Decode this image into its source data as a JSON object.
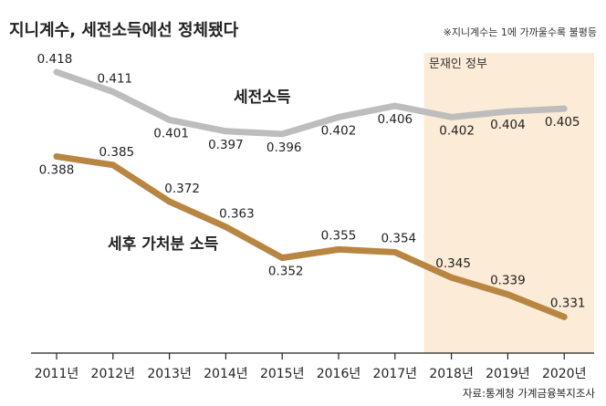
{
  "chart_data": {
    "type": "line",
    "title": "지니계수, 세전소득에선 정체됐다",
    "note": "※지니계수는 1에 가까울수록 불평등",
    "source": "자료:통계청 가계금융복지조사",
    "categories": [
      "2011년",
      "2012년",
      "2013년",
      "2014년",
      "2015년",
      "2016년",
      "2017년",
      "2018년",
      "2019년",
      "2020년"
    ],
    "highlight": {
      "label": "문재인 정부",
      "from": "2018년",
      "to": "2020년",
      "color": "#fcebd6"
    },
    "series": [
      {
        "name": "세전소득",
        "color": "#bdbdbd",
        "values": [
          0.418,
          0.411,
          0.401,
          0.397,
          0.396,
          0.402,
          0.406,
          0.402,
          0.404,
          0.405
        ]
      },
      {
        "name": "세후 가처분 소득",
        "color": "#b98542",
        "values": [
          0.388,
          0.385,
          0.372,
          0.363,
          0.352,
          0.355,
          0.354,
          0.345,
          0.339,
          0.331
        ]
      }
    ]
  }
}
